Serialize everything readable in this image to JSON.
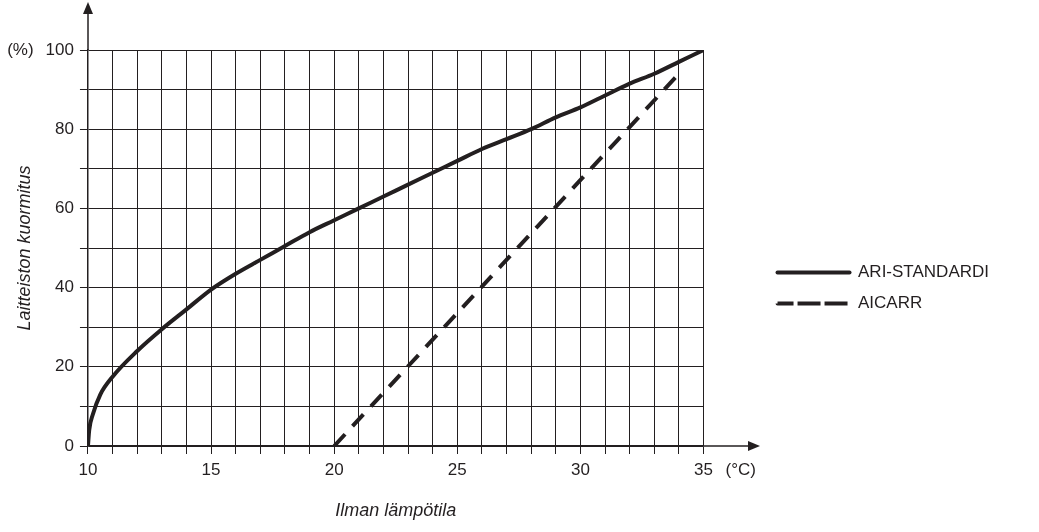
{
  "chart_data": {
    "type": "line",
    "xlabel": "Ilman lämpötila",
    "ylabel": "Laitteiston kuormitus",
    "annotations": [
      "(%)",
      "(°C)"
    ],
    "series": [
      {
        "name": "ARI-STANDARDI",
        "color": "#231f20",
        "line_style": "solid",
        "x": [
          10,
          10.05,
          10.2,
          10.5,
          11,
          12,
          13,
          14,
          15,
          16,
          17,
          18,
          19,
          20,
          21,
          22,
          23,
          24,
          25,
          26,
          27,
          28,
          29,
          30,
          31,
          32,
          33,
          34,
          35
        ],
        "values": [
          0,
          4,
          8,
          13,
          17.5,
          24,
          29.5,
          34.5,
          39.5,
          43.5,
          47,
          50.5,
          54,
          57,
          60,
          63,
          66,
          69,
          72,
          75,
          77.5,
          80,
          83,
          85.5,
          88.5,
          91.5,
          94,
          97,
          100
        ]
      },
      {
        "name": "AICARR",
        "color": "#231f20",
        "line_style": "dashed",
        "x": [
          20,
          34
        ],
        "values": [
          0,
          94
        ]
      }
    ],
    "xlim": [
      10,
      35
    ],
    "xticks": [
      10,
      {
        "value": 11,
        "label": null
      },
      {
        "value": 12,
        "label": null
      },
      {
        "value": 13,
        "label": null
      },
      {
        "value": 14,
        "label": null
      },
      15,
      {
        "value": 16,
        "label": null
      },
      {
        "value": 17,
        "label": null
      },
      {
        "value": 18,
        "label": null
      },
      {
        "value": 19,
        "label": null
      },
      20,
      {
        "value": 21,
        "label": null
      },
      {
        "value": 22,
        "label": null
      },
      {
        "value": 23,
        "label": null
      },
      {
        "value": 24,
        "label": null
      },
      25,
      {
        "value": 26,
        "label": null
      },
      {
        "value": 27,
        "label": null
      },
      {
        "value": 28,
        "label": null
      },
      {
        "value": 29,
        "label": null
      },
      30,
      {
        "value": 31,
        "label": null
      },
      {
        "value": 32,
        "label": null
      },
      {
        "value": 33,
        "label": null
      },
      {
        "value": 34,
        "label": null
      },
      35
    ],
    "ylim": [
      0,
      100
    ],
    "yticks": [
      0,
      {
        "value": 10,
        "label": null
      },
      20,
      {
        "value": 30,
        "label": null
      },
      40,
      {
        "value": 50,
        "label": null
      },
      60,
      {
        "value": 70,
        "label": null
      },
      80,
      {
        "value": 90,
        "label": null
      },
      100
    ],
    "grid": true,
    "legend": "right",
    "marker": "none"
  }
}
